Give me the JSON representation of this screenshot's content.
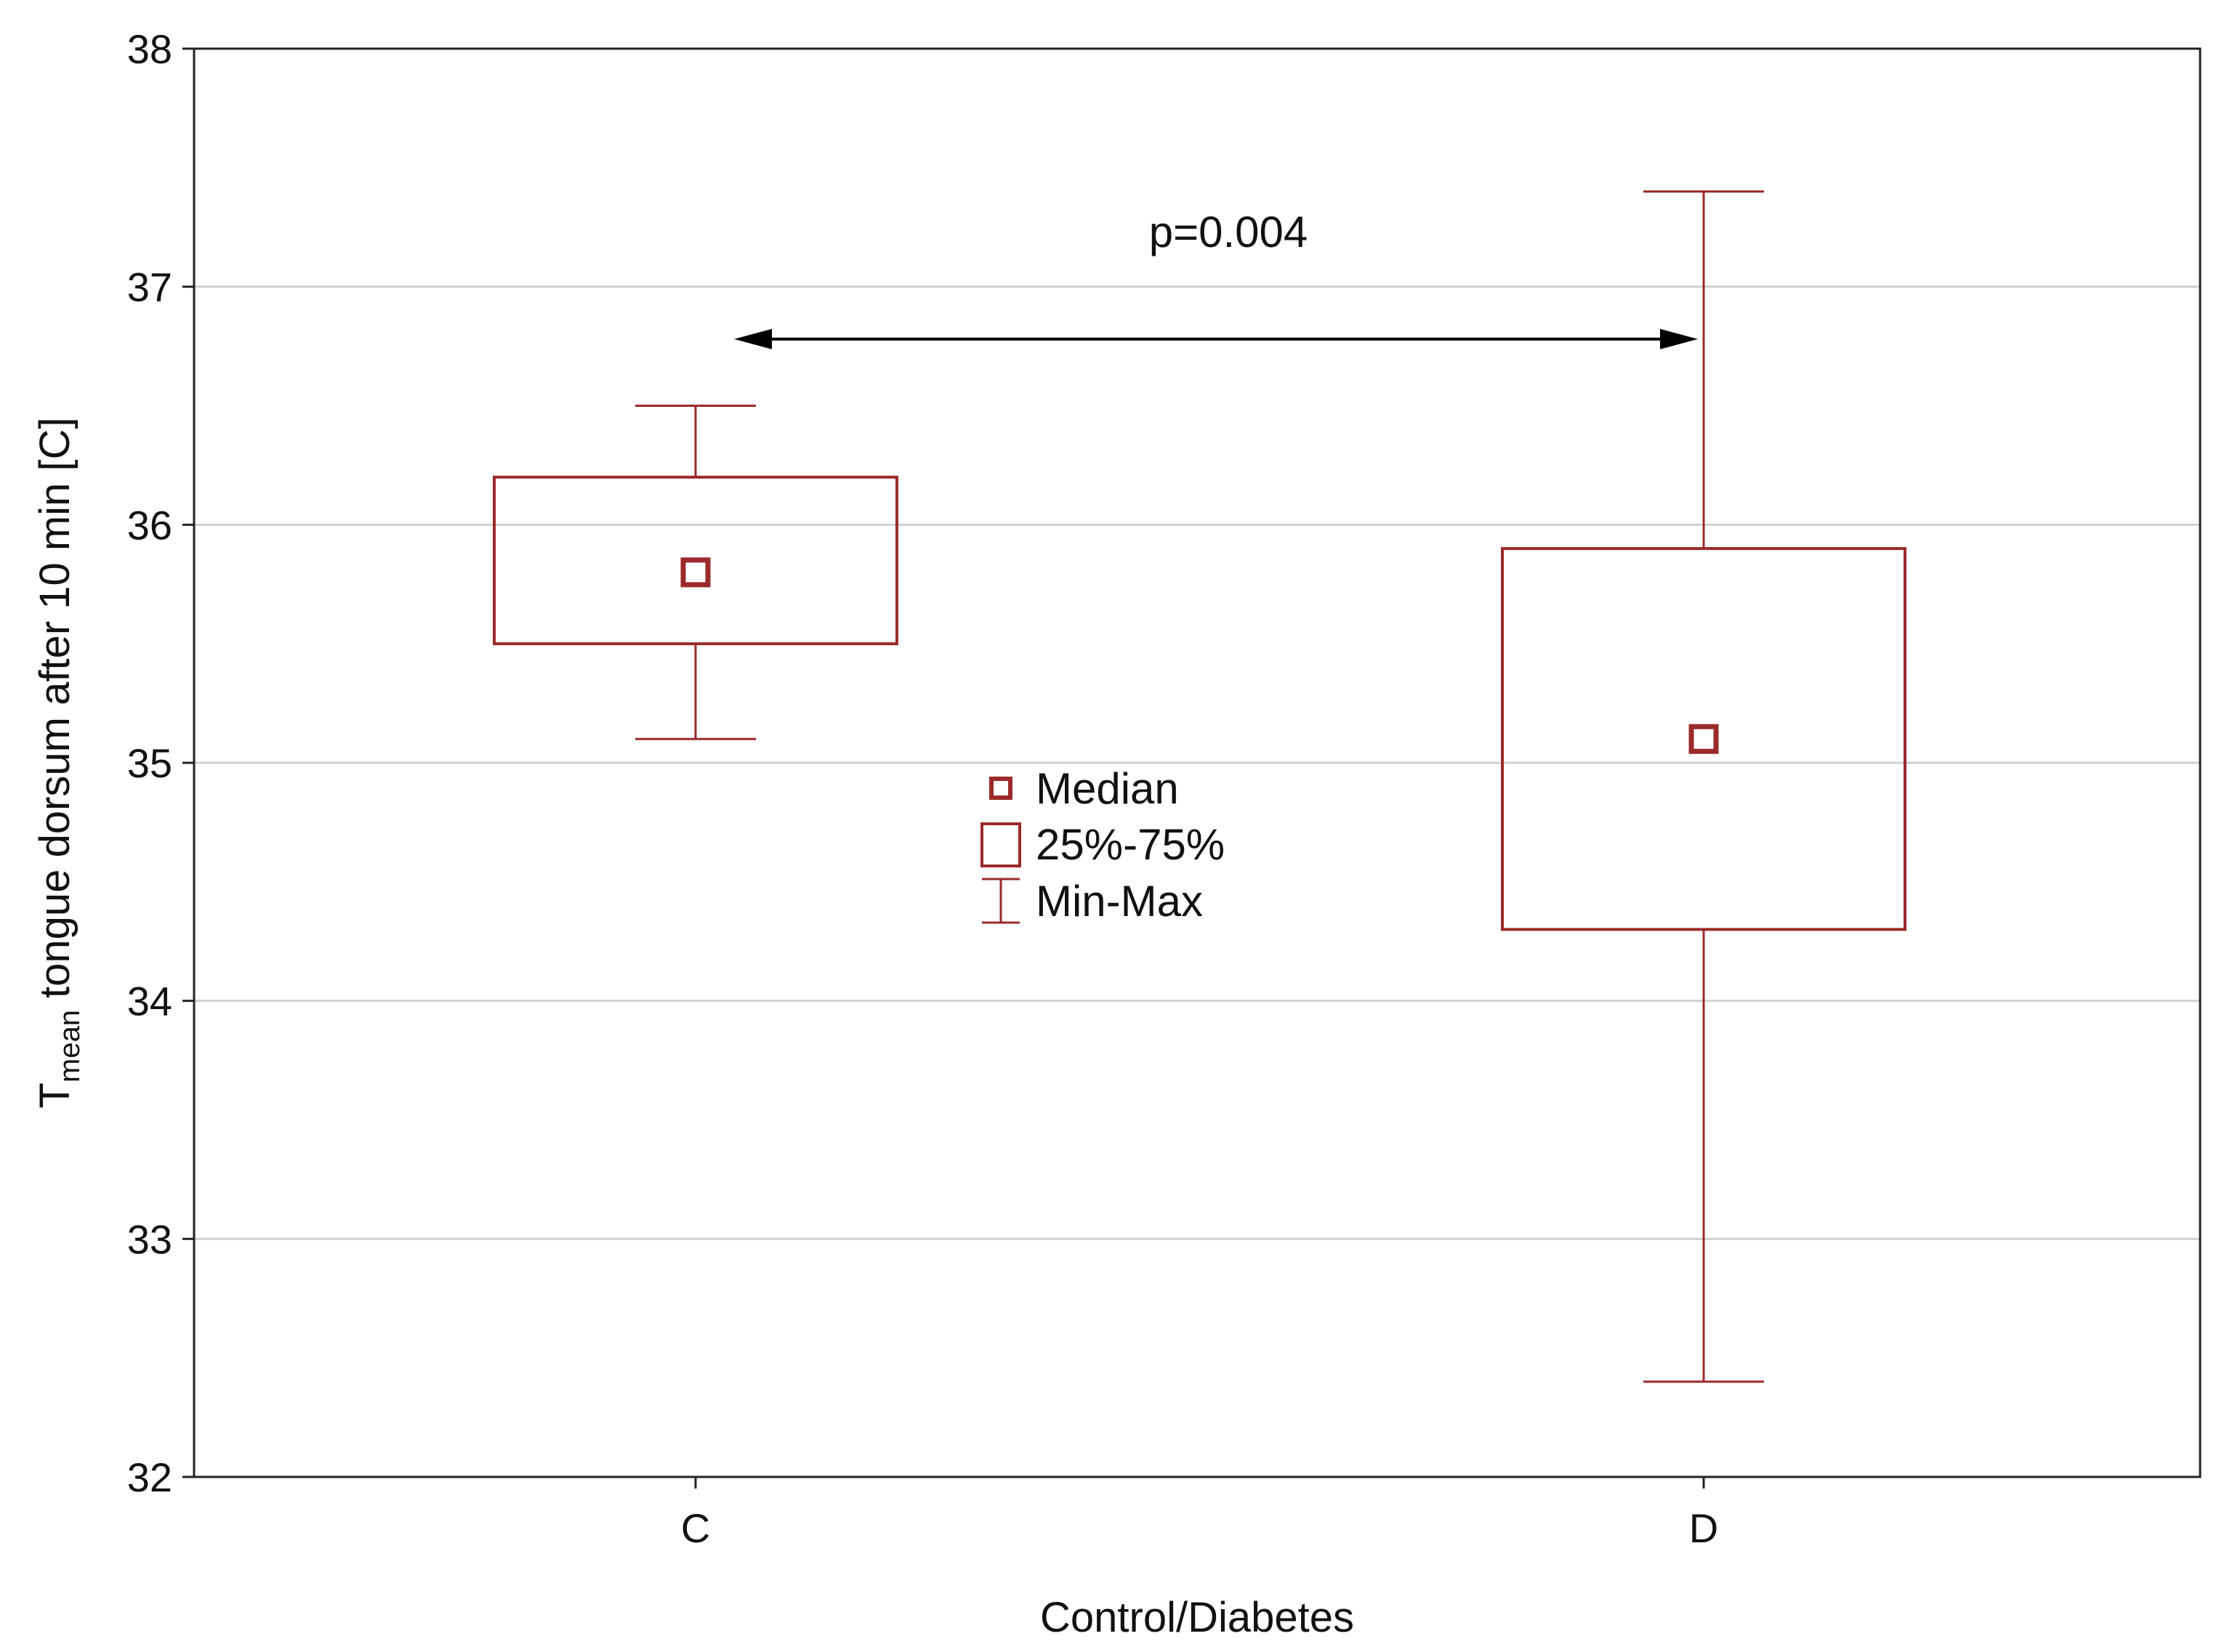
{
  "chart_data": {
    "type": "boxplot",
    "xlabel": "Control/Diabetes",
    "ylabel_main": "T",
    "ylabel_sub": "mean",
    "ylabel_rest": " tongue dorsum after 10 min [C]",
    "ylim": [
      32,
      38
    ],
    "yticks": [
      32,
      33,
      34,
      35,
      36,
      37,
      38
    ],
    "grid": true,
    "categories": [
      "C",
      "D"
    ],
    "series": [
      {
        "name": "C",
        "min": 35.1,
        "q1": 35.5,
        "median": 35.8,
        "q3": 36.2,
        "max": 36.5
      },
      {
        "name": "D",
        "min": 32.4,
        "q1": 34.3,
        "median": 35.1,
        "q3": 35.9,
        "max": 37.4
      }
    ],
    "annotation": {
      "text": "p=0.004",
      "arrow_y": 36.78,
      "from": "C",
      "to": "D"
    },
    "legend": {
      "position": "center",
      "items": [
        {
          "kind": "median",
          "label": "Median"
        },
        {
          "kind": "box",
          "label": "25%-75%"
        },
        {
          "kind": "whisker",
          "label": "Min-Max"
        }
      ]
    },
    "colors": {
      "box": "#9b2a2a",
      "grid": "#d0d0d0",
      "axis": "#222222",
      "arrow": "#000000"
    }
  }
}
